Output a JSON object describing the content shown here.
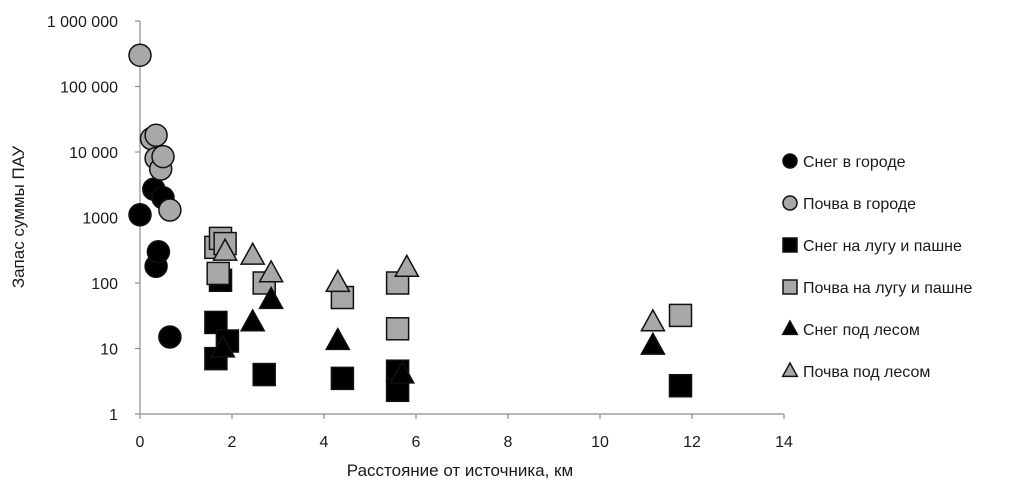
{
  "chart_data": {
    "type": "scatter",
    "xlabel": "Расстояние от источника, км",
    "ylabel": "Запас суммы ПАУ",
    "xlim": [
      0,
      14
    ],
    "ylim": [
      1,
      1000000
    ],
    "yscale": "log",
    "x_ticks": [
      "0",
      "2",
      "4",
      "6",
      "8",
      "10",
      "12",
      "14"
    ],
    "y_ticks": [
      "1",
      "10",
      "100",
      "1000",
      "10 000",
      "100 000",
      "1 000 000"
    ],
    "grid": false,
    "legend_position": "right",
    "series": [
      {
        "name": "Снег в городе",
        "marker": "circle",
        "fill": "#000000",
        "points": [
          [
            0.0,
            1100
          ],
          [
            0.3,
            2700
          ],
          [
            0.35,
            180
          ],
          [
            0.4,
            300
          ],
          [
            0.5,
            2000
          ],
          [
            0.65,
            15
          ]
        ]
      },
      {
        "name": "Почва в городе",
        "marker": "circle",
        "fill": "#a8a8a8",
        "points": [
          [
            0.0,
            300000
          ],
          [
            0.25,
            16000
          ],
          [
            0.35,
            18000
          ],
          [
            0.35,
            8000
          ],
          [
            0.45,
            5500
          ],
          [
            0.5,
            8500
          ],
          [
            0.65,
            1300
          ]
        ]
      },
      {
        "name": "Снег на лугу и пашне",
        "marker": "square",
        "fill": "#000000",
        "points": [
          [
            1.65,
            7
          ],
          [
            1.65,
            25
          ],
          [
            1.75,
            110
          ],
          [
            1.9,
            13
          ],
          [
            2.7,
            4
          ],
          [
            4.4,
            3.5
          ],
          [
            5.6,
            4.5
          ],
          [
            5.6,
            2.3
          ],
          [
            11.75,
            2.7
          ]
        ]
      },
      {
        "name": "Почва на лугу и пашне",
        "marker": "square",
        "fill": "#a8a8a8",
        "points": [
          [
            1.65,
            350
          ],
          [
            1.7,
            140
          ],
          [
            1.75,
            480
          ],
          [
            1.85,
            400
          ],
          [
            2.7,
            100
          ],
          [
            4.4,
            60
          ],
          [
            5.6,
            100
          ],
          [
            5.6,
            20
          ],
          [
            11.75,
            32
          ]
        ]
      },
      {
        "name": "Снег под лесом",
        "marker": "triangle",
        "fill": "#000000",
        "points": [
          [
            1.8,
            10
          ],
          [
            2.45,
            25
          ],
          [
            2.85,
            55
          ],
          [
            4.3,
            13
          ],
          [
            5.7,
            4
          ],
          [
            11.15,
            11
          ]
        ]
      },
      {
        "name": "Почва под лесом",
        "marker": "triangle",
        "fill": "#a8a8a8",
        "points": [
          [
            1.85,
            300
          ],
          [
            2.45,
            260
          ],
          [
            2.85,
            140
          ],
          [
            4.3,
            100
          ],
          [
            5.8,
            170
          ],
          [
            11.15,
            25
          ]
        ]
      }
    ]
  }
}
